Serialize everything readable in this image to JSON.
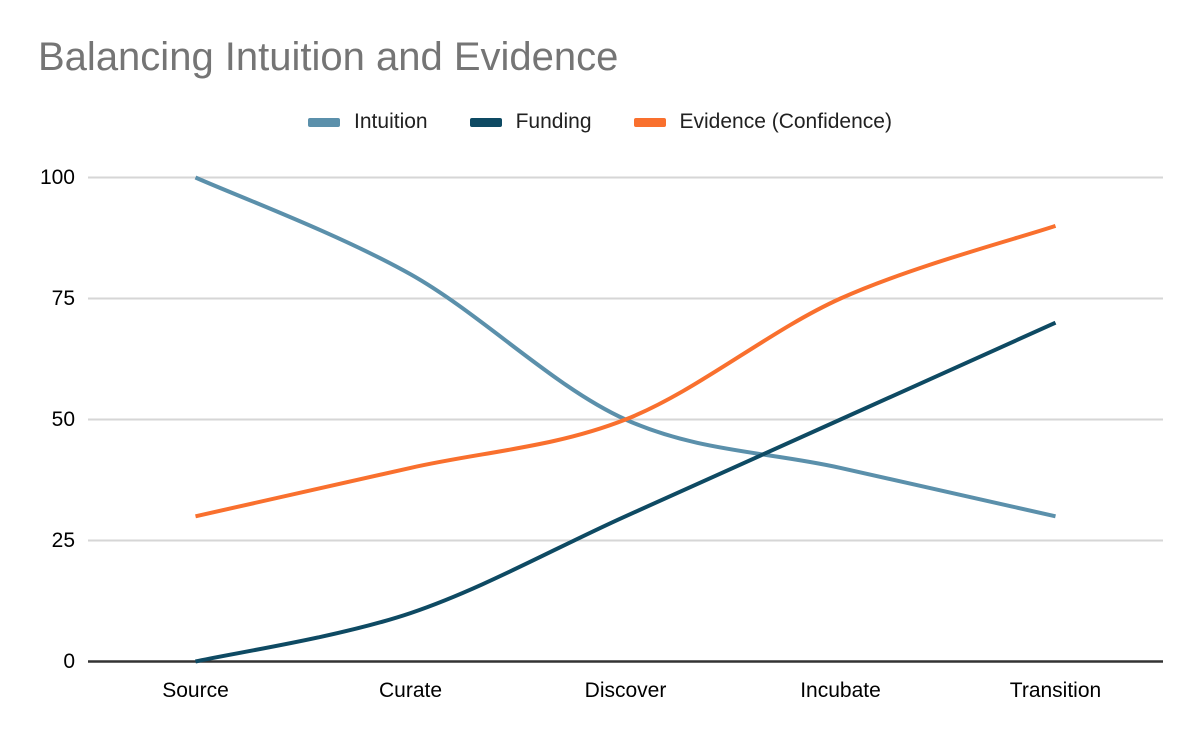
{
  "chart_data": {
    "type": "line",
    "smooth": true,
    "title": "Balancing Intuition and Evidence",
    "xlabel": "",
    "ylabel": "",
    "categories": [
      "Source",
      "Curate",
      "Discover",
      "Incubate",
      "Transition"
    ],
    "series": [
      {
        "name": "Intuition",
        "color": "#5b90ab",
        "values": [
          100,
          80,
          50,
          40,
          30
        ]
      },
      {
        "name": "Funding",
        "color": "#0e4a63",
        "values": [
          0,
          10,
          30,
          50,
          70
        ]
      },
      {
        "name": "Evidence (Confidence)",
        "color": "#f9702e",
        "values": [
          30,
          40,
          50,
          75,
          90
        ]
      }
    ],
    "ylim": [
      0,
      100
    ],
    "y_ticks": [
      0,
      25,
      50,
      75,
      100
    ],
    "grid": true,
    "legend_position": "top"
  },
  "colors": {
    "title_text": "#757575",
    "axis_text": "#000000",
    "legend_text": "#212121",
    "gridline": "#d6d6d6",
    "baseline": "#333333",
    "background": "#ffffff"
  }
}
